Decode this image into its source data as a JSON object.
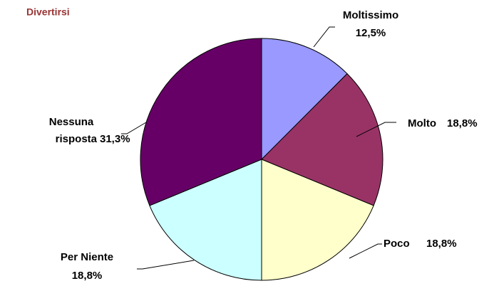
{
  "chart_data": {
    "type": "pie",
    "title": "Divertirsi",
    "categories": [
      "Moltissimo",
      "Molto",
      "Poco",
      "Per Niente",
      "Nessuna risposta"
    ],
    "values": [
      12.5,
      18.8,
      18.8,
      18.8,
      31.3
    ],
    "value_labels": [
      "12,5%",
      "18,8%",
      "18,8%",
      "18,8%",
      "31,3%"
    ],
    "colors": [
      "#9999ff",
      "#993366",
      "#ffffcc",
      "#ccffff",
      "#660066"
    ]
  }
}
